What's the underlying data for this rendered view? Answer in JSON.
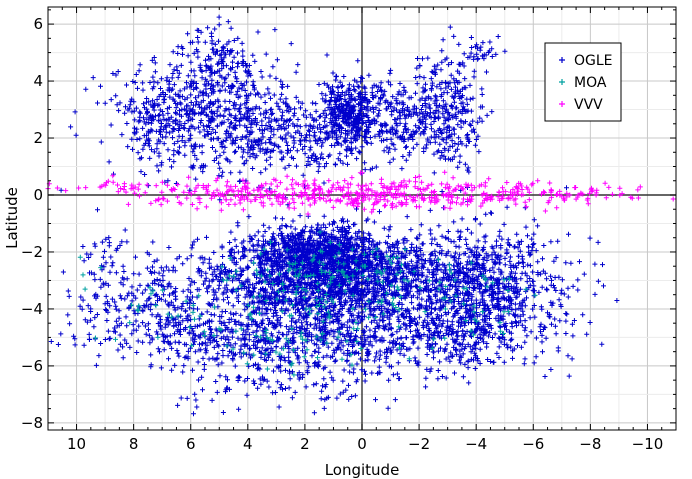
{
  "chart_data": {
    "type": "scatter",
    "xlabel": "Longitude",
    "ylabel": "Latitude",
    "xlim": [
      11,
      -11
    ],
    "ylim": [
      -8.25,
      6.6
    ],
    "x_reversed": true,
    "grid": true,
    "legend_position": "top-right",
    "x_ticks": [
      10,
      8,
      6,
      4,
      2,
      0,
      -2,
      -4,
      -6,
      -8,
      -10
    ],
    "x_tick_labels": [
      "10",
      "8",
      "6",
      "4",
      "2",
      "0",
      "−2",
      "−4",
      "−6",
      "−8",
      "−10"
    ],
    "y_ticks": [
      -8,
      -6,
      -4,
      -2,
      0,
      2,
      4,
      6
    ],
    "y_tick_labels": [
      "−8",
      "−6",
      "−4",
      "−2",
      "0",
      "2",
      "4",
      "6"
    ],
    "series": [
      {
        "name": "OGLE",
        "color": "#0000cc",
        "marker": "plus",
        "clusters": [
          {
            "cx": 1.0,
            "cy": -3.0,
            "sx": 2.4,
            "sy": 0.8,
            "n": 1900
          },
          {
            "cx": 1.5,
            "cy": -2.0,
            "sx": 1.3,
            "sy": 0.45,
            "n": 700
          },
          {
            "cx": 2.5,
            "cy": -4.9,
            "sx": 3.2,
            "sy": 0.5,
            "n": 700
          },
          {
            "cx": 2.5,
            "cy": -6.2,
            "sx": 2.6,
            "sy": 0.6,
            "n": 220
          },
          {
            "cx": -4.2,
            "cy": -3.2,
            "sx": 1.2,
            "sy": 1.0,
            "n": 650
          },
          {
            "cx": -3.5,
            "cy": -5.0,
            "sx": 1.0,
            "sy": 0.6,
            "n": 160
          },
          {
            "cx": -6.5,
            "cy": -3.5,
            "sx": 1.0,
            "sy": 1.2,
            "n": 90
          },
          {
            "cx": 7.5,
            "cy": -3.6,
            "sx": 1.2,
            "sy": 0.8,
            "n": 160
          },
          {
            "cx": 9.0,
            "cy": -3.0,
            "sx": 0.6,
            "sy": 1.0,
            "n": 50
          },
          {
            "cx": 5.5,
            "cy": 2.8,
            "sx": 1.6,
            "sy": 1.0,
            "n": 650
          },
          {
            "cx": 5.0,
            "cy": 4.8,
            "sx": 0.8,
            "sy": 0.7,
            "n": 120
          },
          {
            "cx": 3.5,
            "cy": 2.0,
            "sx": 1.0,
            "sy": 0.8,
            "n": 120
          },
          {
            "cx": 0.4,
            "cy": 2.8,
            "sx": 0.55,
            "sy": 0.6,
            "n": 400
          },
          {
            "cx": 1.5,
            "cy": 1.8,
            "sx": 0.9,
            "sy": 0.6,
            "n": 110
          },
          {
            "cx": -1.6,
            "cy": 2.7,
            "sx": 0.9,
            "sy": 0.7,
            "n": 260
          },
          {
            "cx": -3.4,
            "cy": 2.2,
            "sx": 0.6,
            "sy": 0.8,
            "n": 120
          },
          {
            "cx": -3.0,
            "cy": 3.8,
            "sx": 0.5,
            "sy": 0.7,
            "n": 90
          },
          {
            "cx": 7.4,
            "cy": 2.4,
            "sx": 0.5,
            "sy": 0.4,
            "n": 40
          },
          {
            "cx": -4.3,
            "cy": 4.9,
            "sx": 0.3,
            "sy": 0.3,
            "n": 30
          }
        ]
      },
      {
        "name": "MOA",
        "color": "#00a0a0",
        "marker": "plus",
        "clusters": [
          {
            "cx": 1.2,
            "cy": -3.0,
            "sx": 1.8,
            "sy": 0.7,
            "n": 170
          },
          {
            "cx": 2.0,
            "cy": -5.0,
            "sx": 2.2,
            "sy": 0.5,
            "n": 60
          },
          {
            "cx": -4.0,
            "cy": -3.5,
            "sx": 1.0,
            "sy": 0.7,
            "n": 40
          },
          {
            "cx": 7.0,
            "cy": -3.8,
            "sx": 1.2,
            "sy": 0.7,
            "n": 25
          },
          {
            "cx": 9.6,
            "cy": -3.0,
            "sx": 0.4,
            "sy": 0.5,
            "n": 4
          }
        ]
      },
      {
        "name": "VVV",
        "color": "#ff00ff",
        "marker": "plus",
        "clusters": [
          {
            "cx": 1.0,
            "cy": 0.05,
            "sx": 3.2,
            "sy": 0.25,
            "n": 420
          },
          {
            "cx": -5.5,
            "cy": 0.0,
            "sx": 2.2,
            "sy": 0.2,
            "n": 130
          },
          {
            "cx": 8.5,
            "cy": 0.3,
            "sx": 1.0,
            "sy": 0.15,
            "n": 30
          }
        ]
      }
    ]
  }
}
